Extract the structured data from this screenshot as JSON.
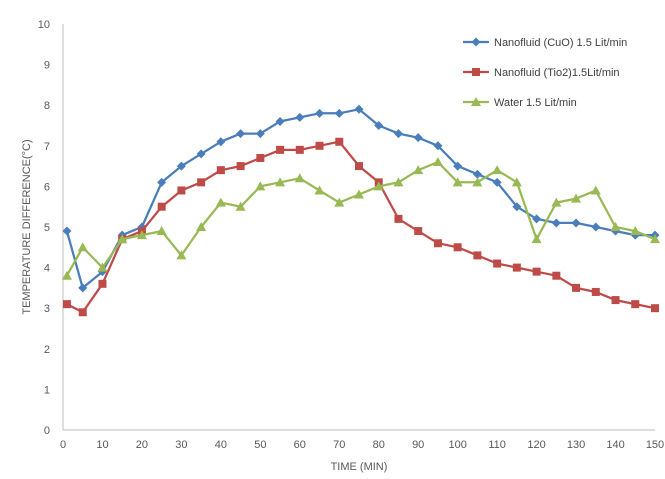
{
  "chart_data": {
    "type": "line",
    "title": "",
    "xlabel": "TIME (MIN)",
    "ylabel": "TEMPERATURE DIFFERENCE(°C)",
    "xlim": [
      0,
      150
    ],
    "ylim": [
      0,
      10
    ],
    "x_ticks": [
      0,
      10,
      20,
      30,
      40,
      50,
      60,
      70,
      80,
      90,
      100,
      110,
      120,
      130,
      140,
      150
    ],
    "y_ticks": [
      0,
      1,
      2,
      3,
      4,
      5,
      6,
      7,
      8,
      9,
      10
    ],
    "grid": false,
    "legend_position": "top-right",
    "series": [
      {
        "name": "Nanofluid (CuO) 1.5 Lit/min",
        "color": "#4a7ebb",
        "marker": "diamond",
        "x": [
          1,
          5,
          10,
          15,
          20,
          25,
          30,
          35,
          40,
          45,
          50,
          55,
          60,
          65,
          70,
          75,
          80,
          85,
          90,
          95,
          100,
          105,
          110,
          115,
          120,
          125,
          130,
          135,
          140,
          145,
          150
        ],
        "values": [
          4.9,
          3.5,
          3.9,
          4.8,
          5.0,
          6.1,
          6.5,
          6.8,
          7.1,
          7.3,
          7.3,
          7.6,
          7.7,
          7.8,
          7.8,
          7.9,
          7.5,
          7.3,
          7.2,
          7.0,
          6.5,
          6.3,
          6.1,
          5.5,
          5.2,
          5.1,
          5.1,
          5.0,
          4.9,
          4.8,
          4.8
        ]
      },
      {
        "name": "Nanofluid (Tio2)1.5Lit/min",
        "color": "#be4b48",
        "marker": "square",
        "x": [
          1,
          5,
          10,
          15,
          20,
          25,
          30,
          35,
          40,
          45,
          50,
          55,
          60,
          65,
          70,
          75,
          80,
          85,
          90,
          95,
          100,
          105,
          110,
          115,
          120,
          125,
          130,
          135,
          140,
          145,
          150
        ],
        "values": [
          3.1,
          2.9,
          3.6,
          4.7,
          4.9,
          5.5,
          5.9,
          6.1,
          6.4,
          6.5,
          6.7,
          6.9,
          6.9,
          7.0,
          7.1,
          6.5,
          6.1,
          5.2,
          4.9,
          4.6,
          4.5,
          4.3,
          4.1,
          4.0,
          3.9,
          3.8,
          3.5,
          3.4,
          3.2,
          3.1,
          3.0
        ]
      },
      {
        "name": "Water 1.5 Lit/min",
        "color": "#98b954",
        "marker": "triangle",
        "x": [
          1,
          5,
          10,
          15,
          20,
          25,
          30,
          35,
          40,
          45,
          50,
          55,
          60,
          65,
          70,
          75,
          80,
          85,
          90,
          95,
          100,
          105,
          110,
          115,
          120,
          125,
          130,
          135,
          140,
          145,
          150
        ],
        "values": [
          3.8,
          4.5,
          4.0,
          4.7,
          4.8,
          4.9,
          4.3,
          5.0,
          5.6,
          5.5,
          6.0,
          6.1,
          6.2,
          5.9,
          5.6,
          5.8,
          6.0,
          6.1,
          6.4,
          6.6,
          6.1,
          6.1,
          6.4,
          6.1,
          4.7,
          5.6,
          5.7,
          5.9,
          5.0,
          4.9,
          4.7
        ]
      }
    ]
  }
}
